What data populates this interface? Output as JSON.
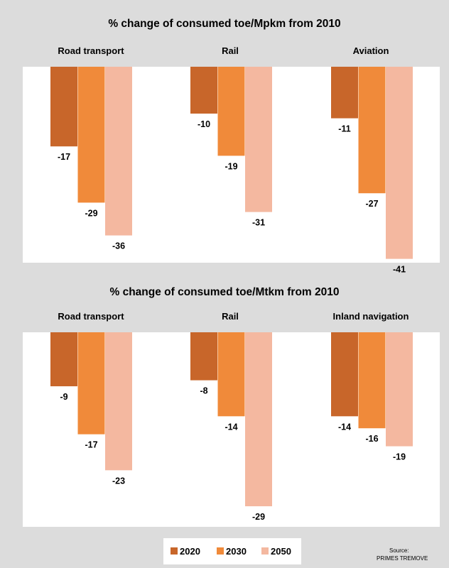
{
  "chart_data": [
    {
      "type": "bar",
      "title": "% change of consumed toe/Mpkm from 2010",
      "categories": [
        "Road transport",
        "Rail",
        "Aviation"
      ],
      "series": [
        {
          "name": "2020",
          "values": [
            -17,
            -10,
            -11
          ]
        },
        {
          "name": "2030",
          "values": [
            -29,
            -19,
            -27
          ]
        },
        {
          "name": "2050",
          "values": [
            -36,
            -31,
            -41
          ]
        }
      ],
      "data_labels": true,
      "grid": false
    },
    {
      "type": "bar",
      "title": "% change of consumed toe/Mtkm from 2010",
      "categories": [
        "Road transport",
        "Rail",
        "Inland navigation"
      ],
      "series": [
        {
          "name": "2020",
          "values": [
            -9,
            -8,
            -14
          ]
        },
        {
          "name": "2030",
          "values": [
            -17,
            -14,
            -16
          ]
        },
        {
          "name": "2050",
          "values": [
            -23,
            -29,
            -19
          ]
        }
      ],
      "data_labels": true,
      "grid": false
    }
  ],
  "colors": {
    "2020": "#c8662a",
    "2030": "#f08a3a",
    "2050": "#f4b8a0"
  },
  "legend": {
    "items": [
      "2020",
      "2030",
      "2050"
    ],
    "position": "bottom"
  },
  "source": {
    "line1": "Source:",
    "line2": "PRIMES TREMOVE"
  }
}
